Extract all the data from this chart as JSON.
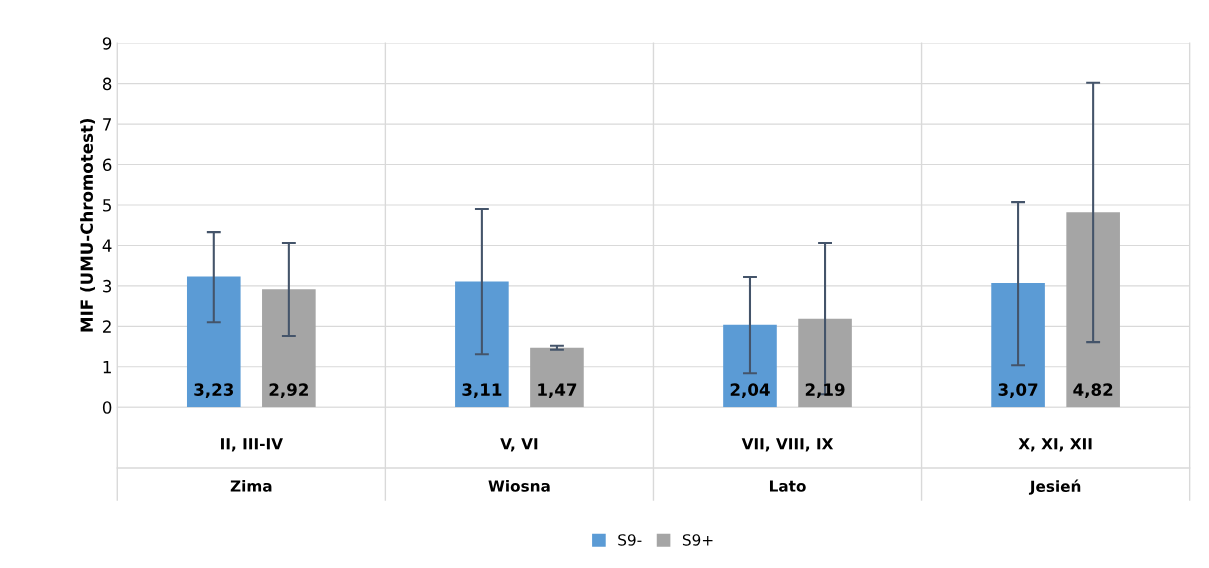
{
  "chart_data": {
    "type": "bar",
    "ylabel": "MIF (UMU-Chromotest)",
    "categories": [
      "II, III-IV",
      "V, VI",
      "VII, VIII, IX",
      "X, XI, XII"
    ],
    "annotations": [
      "Zima",
      "Wiosna",
      "Lato",
      "Jesień"
    ],
    "series": [
      {
        "name": "S9-",
        "color": "#5b9bd5",
        "values": [
          3.23,
          3.11,
          2.04,
          3.07
        ],
        "errors": [
          [
            2.1,
            4.33
          ],
          [
            1.31,
            4.9
          ],
          [
            0.84,
            3.22
          ],
          [
            1.04,
            5.07
          ]
        ],
        "value_labels": [
          "3,23",
          "3,11",
          "2,04",
          "3,07"
        ]
      },
      {
        "name": "S9+",
        "color": "#a5a5a5",
        "values": [
          2.92,
          1.47,
          2.19,
          4.82
        ],
        "errors": [
          [
            1.76,
            4.06
          ],
          [
            1.42,
            1.52
          ],
          [
            0.32,
            4.06
          ],
          [
            1.61,
            8.02
          ]
        ],
        "value_labels": [
          "2,92",
          "1,47",
          "2,19",
          "4,82"
        ]
      }
    ],
    "ylim": [
      0,
      9
    ],
    "yticks": [
      0,
      1,
      2,
      3,
      4,
      5,
      6,
      7,
      8,
      9
    ],
    "grid": "y",
    "legend": "bottom"
  }
}
